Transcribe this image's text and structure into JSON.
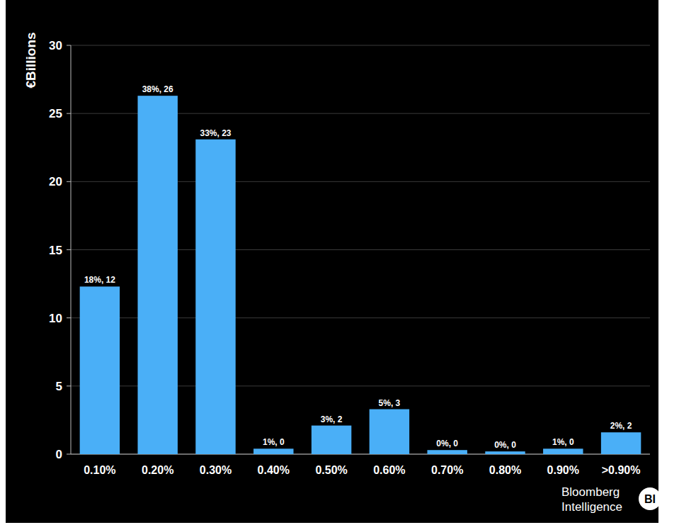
{
  "chart_data": {
    "type": "bar",
    "y_label": "€Billions",
    "categories": [
      "0.10%",
      "0.20%",
      "0.30%",
      "0.40%",
      "0.50%",
      "0.60%",
      "0.70%",
      "0.80%",
      "0.90%",
      ">0.90%"
    ],
    "values": [
      12.3,
      26.3,
      23.1,
      0.4,
      2.1,
      3.3,
      0.3,
      0.2,
      0.4,
      1.6
    ],
    "value_labels": [
      "18%, 12",
      "38%, 26",
      "33%, 23",
      "1%, 0",
      "3%, 2",
      "5%, 3",
      "0%, 0",
      "0%, 0",
      "1%, 0",
      "2%, 2"
    ],
    "color": "#4aaff7",
    "ylim": [
      0,
      30
    ],
    "yticks": [
      0,
      5,
      10,
      15,
      20,
      25,
      30
    ],
    "grid": true,
    "data_labels": true,
    "annotations": [
      "Bloomberg",
      "Intelligence",
      "BI"
    ]
  }
}
